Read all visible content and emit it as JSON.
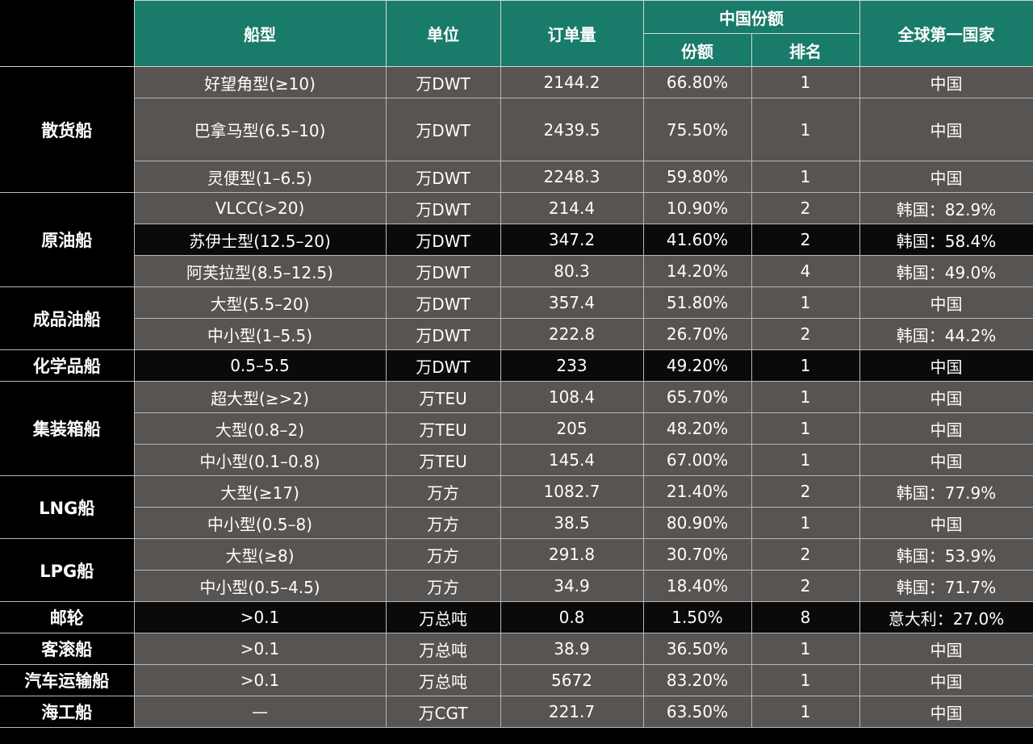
{
  "header": {
    "ship_type": "船型",
    "unit": "单位",
    "orders": "订单量",
    "china_share_group": "中国份额",
    "share": "份额",
    "rank": "排名",
    "global_top": "全球第一国家"
  },
  "categories": {
    "bulk": "散货船",
    "crude": "原油船",
    "product": "成品油船",
    "chemical": "化学品船",
    "container": "集装箱船",
    "lng": "LNG船",
    "lpg": "LPG船",
    "cruise": "邮轮",
    "roro": "客滚船",
    "car": "汽车运输船",
    "offshore": "海工船"
  },
  "rows": [
    {
      "type": "好望角型(≥10)",
      "unit": "万DWT",
      "orders": "2144.2",
      "share": "66.80%",
      "rank": "1",
      "top": "中国"
    },
    {
      "type": "巴拿马型(6.5–10)",
      "unit": "万DWT",
      "orders": "2439.5",
      "share": "75.50%",
      "rank": "1",
      "top": "中国"
    },
    {
      "type": "灵便型(1–6.5)",
      "unit": "万DWT",
      "orders": "2248.3",
      "share": "59.80%",
      "rank": "1",
      "top": "中国"
    },
    {
      "type": "VLCC(>20)",
      "unit": "万DWT",
      "orders": "214.4",
      "share": "10.90%",
      "rank": "2",
      "top": "韩国：82.9%"
    },
    {
      "type": "苏伊士型(12.5–20)",
      "unit": "万DWT",
      "orders": "347.2",
      "share": "41.60%",
      "rank": "2",
      "top": "韩国：58.4%"
    },
    {
      "type": "阿芙拉型(8.5–12.5)",
      "unit": "万DWT",
      "orders": "80.3",
      "share": "14.20%",
      "rank": "4",
      "top": "韩国：49.0%"
    },
    {
      "type": "大型(5.5–20)",
      "unit": "万DWT",
      "orders": "357.4",
      "share": "51.80%",
      "rank": "1",
      "top": "中国"
    },
    {
      "type": "中小型(1–5.5)",
      "unit": "万DWT",
      "orders": "222.8",
      "share": "26.70%",
      "rank": "2",
      "top": "韩国：44.2%"
    },
    {
      "type": "0.5–5.5",
      "unit": "万DWT",
      "orders": "233",
      "share": "49.20%",
      "rank": "1",
      "top": "中国"
    },
    {
      "type": "超大型(≥>2)",
      "unit": "万TEU",
      "orders": "108.4",
      "share": "65.70%",
      "rank": "1",
      "top": "中国"
    },
    {
      "type": "大型(0.8–2)",
      "unit": "万TEU",
      "orders": "205",
      "share": "48.20%",
      "rank": "1",
      "top": "中国"
    },
    {
      "type": "中小型(0.1–0.8)",
      "unit": "万TEU",
      "orders": "145.4",
      "share": "67.00%",
      "rank": "1",
      "top": "中国"
    },
    {
      "type": "大型(≥17)",
      "unit": "万方",
      "orders": "1082.7",
      "share": "21.40%",
      "rank": "2",
      "top": "韩国：77.9%"
    },
    {
      "type": "中小型(0.5–8)",
      "unit": "万方",
      "orders": "38.5",
      "share": "80.90%",
      "rank": "1",
      "top": "中国"
    },
    {
      "type": "大型(≥8)",
      "unit": "万方",
      "orders": "291.8",
      "share": "30.70%",
      "rank": "2",
      "top": "韩国：53.9%"
    },
    {
      "type": "中小型(0.5–4.5)",
      "unit": "万方",
      "orders": "34.9",
      "share": "18.40%",
      "rank": "2",
      "top": "韩国：71.7%"
    },
    {
      "type": ">0.1",
      "unit": "万总吨",
      "orders": "0.8",
      "share": "1.50%",
      "rank": "8",
      "top": "意大利：27.0%"
    },
    {
      "type": ">0.1",
      "unit": "万总吨",
      "orders": "38.9",
      "share": "36.50%",
      "rank": "1",
      "top": "中国"
    },
    {
      "type": ">0.1",
      "unit": "万总吨",
      "orders": "5672",
      "share": "83.20%",
      "rank": "1",
      "top": "中国"
    },
    {
      "type": "—",
      "unit": "万CGT",
      "orders": "221.7",
      "share": "63.50%",
      "rank": "1",
      "top": "中国"
    }
  ]
}
